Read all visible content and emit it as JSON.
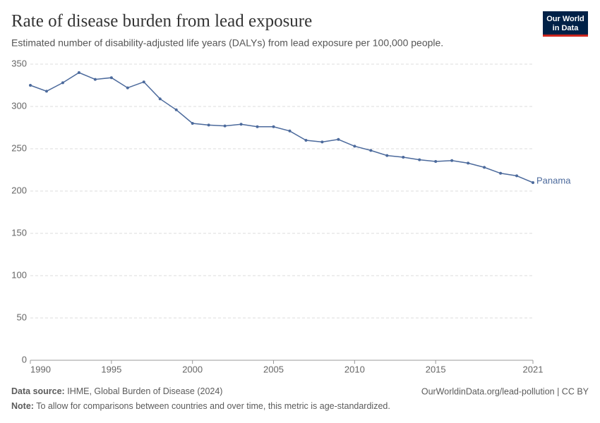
{
  "chart_data": {
    "type": "line",
    "title": "Rate of disease burden from lead exposure",
    "subtitle": "Estimated number of disability-adjusted life years (DALYs) from lead exposure per 100,000 people.",
    "logo": [
      "Our World",
      "in Data"
    ],
    "source_label": "Data source:",
    "source": "IHME, Global Burden of Disease (2024)",
    "url": "OurWorldinData.org/lead-pollution | CC BY",
    "note_label": "Note:",
    "note": "To allow for comparisons between countries and over time, this metric is age-standardized.",
    "x": [
      1990,
      1991,
      1992,
      1993,
      1994,
      1995,
      1996,
      1997,
      1998,
      1999,
      2000,
      2001,
      2002,
      2003,
      2004,
      2005,
      2006,
      2007,
      2008,
      2009,
      2010,
      2011,
      2012,
      2013,
      2014,
      2015,
      2016,
      2017,
      2018,
      2019,
      2020,
      2021
    ],
    "series": [
      {
        "name": "Panama",
        "color": "#4c6a9c",
        "values": [
          325,
          318,
          328,
          340,
          332,
          334,
          322,
          329,
          309,
          296,
          280,
          278,
          277,
          279,
          276,
          276,
          271,
          260,
          258,
          261,
          253,
          248,
          242,
          240,
          237,
          235,
          236,
          233,
          228,
          221,
          218,
          210
        ]
      }
    ],
    "xlim": [
      1990,
      2021
    ],
    "xticks": [
      1990,
      1995,
      2000,
      2005,
      2010,
      2015,
      2021
    ],
    "ylim": [
      0,
      350
    ],
    "yticks": [
      0,
      50,
      100,
      150,
      200,
      250,
      300,
      350
    ],
    "grid": true
  }
}
